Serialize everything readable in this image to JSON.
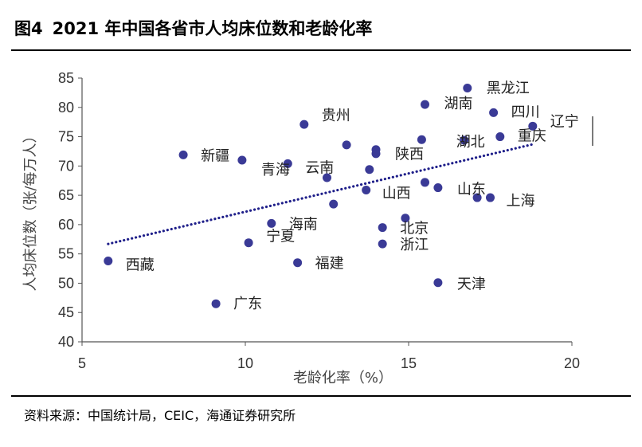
{
  "figure": {
    "number": "图4",
    "title": "2021 年中国各省市人均床位数和老龄化率",
    "source": "资料来源：中国统计局，CEIC，海通证券研究所"
  },
  "colors": {
    "point": "#3a3a96",
    "trend": "#1f1f8a",
    "axis": "#555555"
  },
  "chart_data": {
    "type": "scatter",
    "title": "2021 年中国各省市人均床位数和老龄化率",
    "xlabel": "老龄化率（%）",
    "ylabel": "人均床位数（张/每万人）",
    "xlim": [
      5,
      20
    ],
    "ylim": [
      40,
      85
    ],
    "xticks": [
      5,
      10,
      15,
      20
    ],
    "yticks": [
      40,
      45,
      50,
      55,
      60,
      65,
      70,
      75,
      80,
      85
    ],
    "grid": false,
    "legend": "none",
    "trendline": {
      "style": "dotted",
      "x": [
        5.8,
        18.8
      ],
      "y": [
        56.7,
        73.7
      ]
    },
    "points": [
      {
        "name": "黑龙江",
        "x": 16.8,
        "y": 83.3
      },
      {
        "name": "湖南",
        "x": 15.5,
        "y": 80.5
      },
      {
        "name": "四川",
        "x": 17.6,
        "y": 79.1
      },
      {
        "name": "辽宁",
        "x": 18.8,
        "y": 76.8
      },
      {
        "name": "贵州",
        "x": 11.8,
        "y": 77.1
      },
      {
        "name": "重庆",
        "x": 17.8,
        "y": 75.0
      },
      {
        "name": "湖北",
        "x": 16.7,
        "y": 74.4
      },
      {
        "name": "",
        "x": 15.4,
        "y": 74.5
      },
      {
        "name": "",
        "x": 13.1,
        "y": 73.6
      },
      {
        "name": "陕西",
        "x": 14.0,
        "y": 72.8
      },
      {
        "name": "",
        "x": 14.0,
        "y": 72.1
      },
      {
        "name": "新疆",
        "x": 8.1,
        "y": 71.9
      },
      {
        "name": "青海",
        "x": 9.9,
        "y": 71.0
      },
      {
        "name": "云南",
        "x": 11.3,
        "y": 70.4
      },
      {
        "name": "",
        "x": 13.8,
        "y": 69.4
      },
      {
        "name": "",
        "x": 12.5,
        "y": 68.0
      },
      {
        "name": "",
        "x": 15.5,
        "y": 67.2
      },
      {
        "name": "山西",
        "x": 13.7,
        "y": 65.9
      },
      {
        "name": "山东",
        "x": 15.9,
        "y": 66.3
      },
      {
        "name": "",
        "x": 17.1,
        "y": 64.6
      },
      {
        "name": "上海",
        "x": 17.5,
        "y": 64.6
      },
      {
        "name": "",
        "x": 12.7,
        "y": 63.5
      },
      {
        "name": "海南",
        "x": 10.8,
        "y": 60.2
      },
      {
        "name": "",
        "x": 14.9,
        "y": 61.1
      },
      {
        "name": "北京",
        "x": 14.2,
        "y": 59.5
      },
      {
        "name": "宁夏",
        "x": 10.1,
        "y": 56.9
      },
      {
        "name": "浙江",
        "x": 14.2,
        "y": 56.7
      },
      {
        "name": "西藏",
        "x": 5.8,
        "y": 53.8
      },
      {
        "name": "福建",
        "x": 11.6,
        "y": 53.5
      },
      {
        "name": "天津",
        "x": 15.9,
        "y": 50.1
      },
      {
        "name": "广东",
        "x": 9.1,
        "y": 46.5
      }
    ]
  }
}
